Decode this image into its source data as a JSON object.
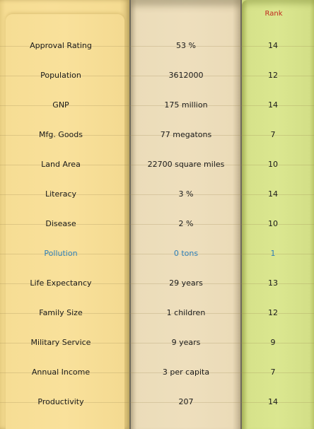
{
  "header": {
    "rank_label": "Rank"
  },
  "colors": {
    "label_column": "#f8df98",
    "value_column": "#eedfbd",
    "rank_column": "#dbe790",
    "rank_header": "#c0281e",
    "highlight_text": "#2e7fb8"
  },
  "rows": [
    {
      "label": "Approval Rating",
      "value": "53 %",
      "rank": "14",
      "highlight": false
    },
    {
      "label": "Population",
      "value": "3612000",
      "rank": "12",
      "highlight": false
    },
    {
      "label": "GNP",
      "value": "175 million",
      "rank": "14",
      "highlight": false
    },
    {
      "label": "Mfg. Goods",
      "value": "77 megatons",
      "rank": "7",
      "highlight": false
    },
    {
      "label": "Land Area",
      "value": "22700 square miles",
      "rank": "10",
      "highlight": false
    },
    {
      "label": "Literacy",
      "value": "3 %",
      "rank": "14",
      "highlight": false
    },
    {
      "label": "Disease",
      "value": "2 %",
      "rank": "10",
      "highlight": false
    },
    {
      "label": "Pollution",
      "value": "0 tons",
      "rank": "1",
      "highlight": true
    },
    {
      "label": "Life Expectancy",
      "value": "29 years",
      "rank": "13",
      "highlight": false
    },
    {
      "label": "Family Size",
      "value": "1 children",
      "rank": "12",
      "highlight": false
    },
    {
      "label": "Military Service",
      "value": "9 years",
      "rank": "9",
      "highlight": false
    },
    {
      "label": "Annual Income",
      "value": "3 per capita",
      "rank": "7",
      "highlight": false
    },
    {
      "label": "Productivity",
      "value": "207",
      "rank": "14",
      "highlight": false
    }
  ]
}
